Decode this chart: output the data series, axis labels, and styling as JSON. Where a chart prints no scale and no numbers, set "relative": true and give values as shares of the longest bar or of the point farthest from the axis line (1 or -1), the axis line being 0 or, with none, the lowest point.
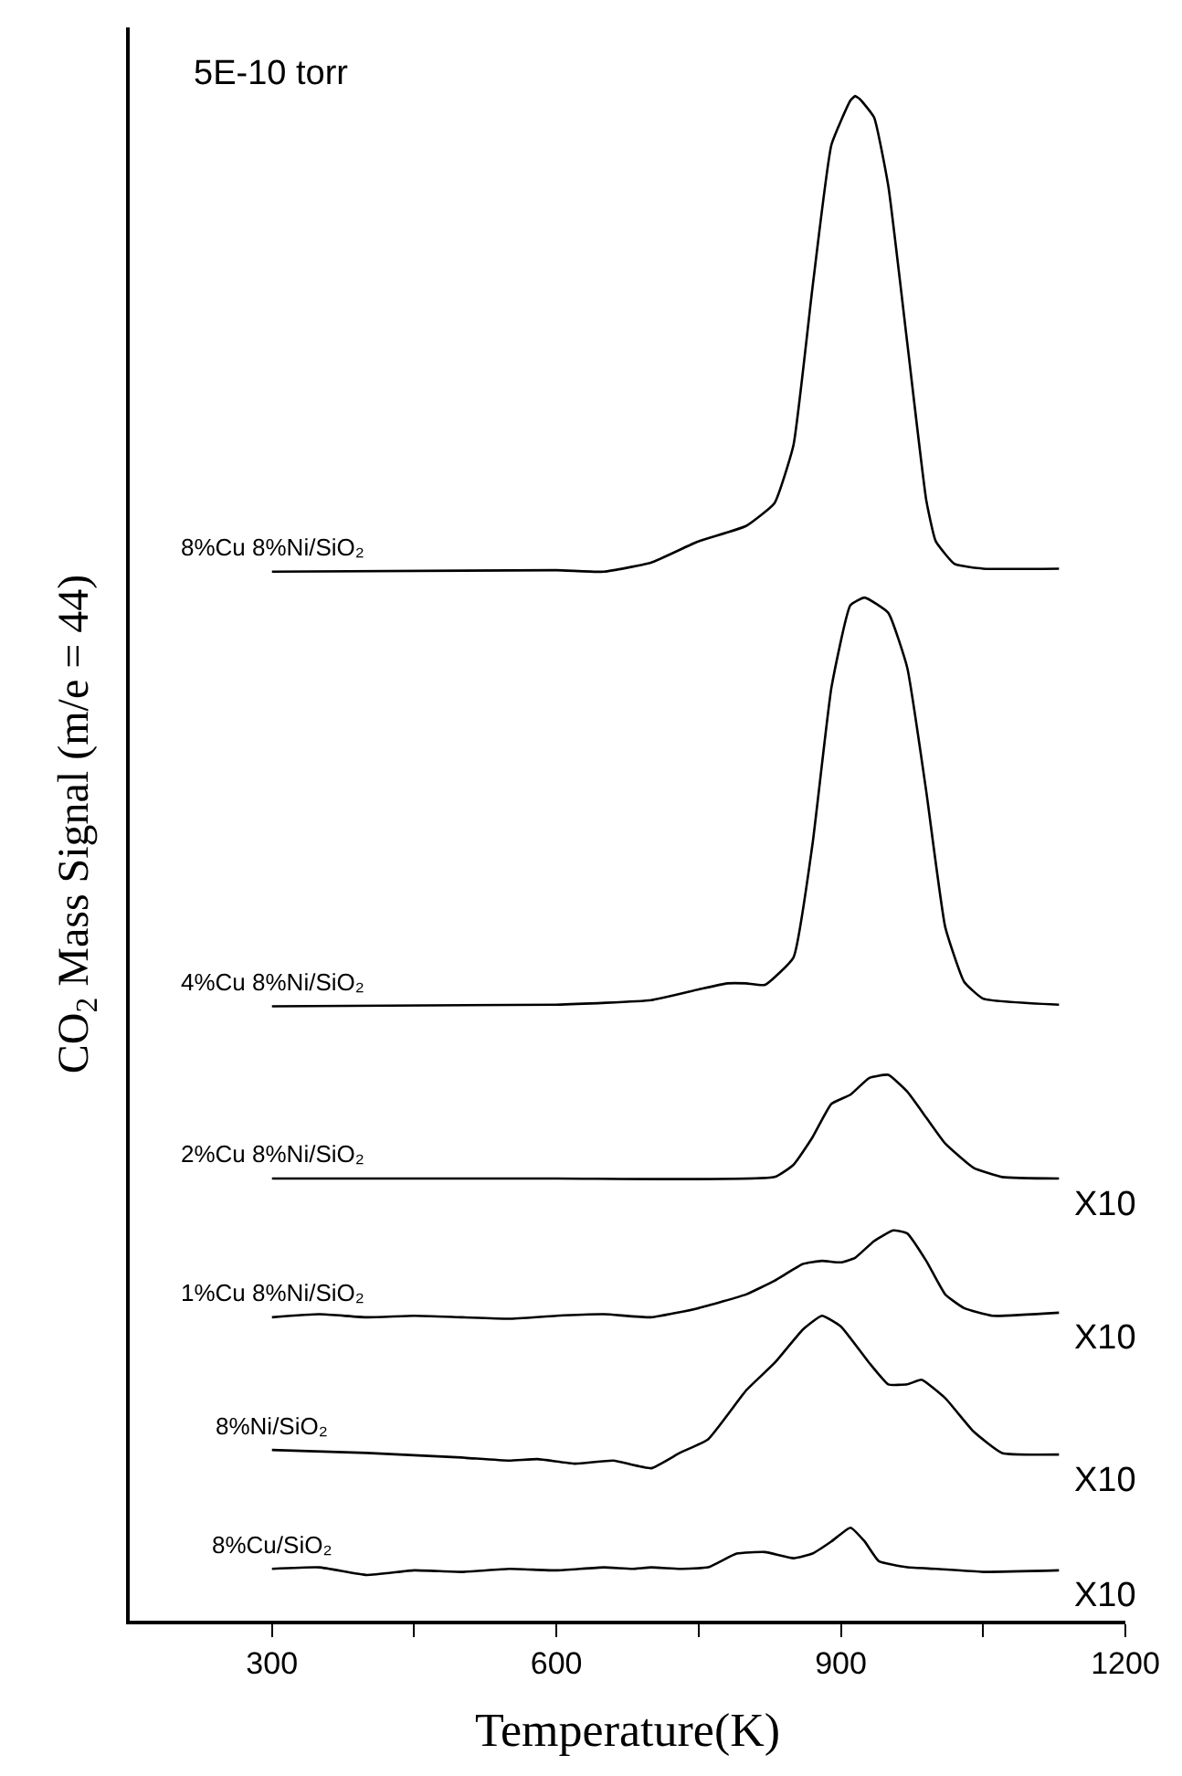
{
  "chart_data": {
    "type": "line",
    "relative": true,
    "xlabel": "Temperature(K)",
    "ylabel": "CO$_{2}$ Mass Signal (m/e = 44)",
    "xlim": [
      150,
      1200
    ],
    "xticks": [
      300,
      {
        "value": 450,
        "label": null
      },
      600,
      {
        "value": 750,
        "label": null
      },
      900,
      {
        "value": 1050,
        "label": null
      },
      1200
    ],
    "legend": false,
    "marker": "none",
    "line_style": "solid",
    "annotations": [
      "5E-10 torr",
      "X10",
      "X10",
      "X10",
      "X10"
    ],
    "series": [
      {
        "name": "8%Cu 8%Ni/SiO₂",
        "color": "#000000",
        "x": [
          300,
          600,
          650,
          700,
          750,
          800,
          830,
          850,
          870,
          890,
          910,
          915,
          920,
          935,
          950,
          970,
          990,
          1000,
          1020,
          1050,
          1130
        ],
        "values": [
          0.688,
          0.689,
          0.688,
          0.694,
          0.708,
          0.718,
          0.733,
          0.771,
          0.874,
          0.968,
          0.997,
          1.0,
          0.998,
          0.986,
          0.941,
          0.838,
          0.735,
          0.708,
          0.693,
          0.69,
          0.69
        ]
      },
      {
        "name": "4%Cu 8%Ni/SiO₂",
        "color": "#000000",
        "x": [
          300,
          600,
          700,
          750,
          780,
          800,
          820,
          850,
          870,
          890,
          910,
          925,
          950,
          970,
          990,
          1010,
          1030,
          1050,
          1130
        ],
        "values": [
          0.403,
          0.404,
          0.407,
          0.414,
          0.418,
          0.418,
          0.417,
          0.435,
          0.509,
          0.612,
          0.666,
          0.671,
          0.661,
          0.625,
          0.544,
          0.455,
          0.419,
          0.408,
          0.404
        ]
      },
      {
        "name": "2%Cu 8%Ni/SiO₂",
        "color": "#000000",
        "x": [
          300,
          600,
          830,
          850,
          870,
          890,
          910,
          930,
          950,
          970,
          990,
          1010,
          1040,
          1070,
          1130
        ],
        "values": [
          0.29,
          0.29,
          0.291,
          0.299,
          0.317,
          0.339,
          0.345,
          0.356,
          0.358,
          0.347,
          0.33,
          0.313,
          0.297,
          0.291,
          0.29
        ]
      },
      {
        "name": "1%Cu 8%Ni/SiO₂",
        "color": "#000000",
        "x": [
          300,
          350,
          400,
          450,
          500,
          550,
          600,
          650,
          700,
          750,
          800,
          830,
          860,
          880,
          900,
          915,
          935,
          955,
          970,
          990,
          1010,
          1030,
          1060,
          1130
        ],
        "values": [
          0.199,
          0.201,
          0.199,
          0.2,
          0.199,
          0.198,
          0.2,
          0.201,
          0.199,
          0.205,
          0.214,
          0.223,
          0.234,
          0.236,
          0.235,
          0.238,
          0.249,
          0.256,
          0.254,
          0.236,
          0.214,
          0.205,
          0.2,
          0.202
        ]
      },
      {
        "name": "8%Ni/SiO₂",
        "color": "#000000",
        "x": [
          300,
          400,
          500,
          550,
          580,
          620,
          660,
          700,
          730,
          760,
          800,
          830,
          860,
          880,
          900,
          930,
          950,
          970,
          985,
          1010,
          1040,
          1070,
          1130
        ],
        "values": [
          0.112,
          0.11,
          0.107,
          0.105,
          0.106,
          0.103,
          0.105,
          0.1,
          0.11,
          0.119,
          0.151,
          0.169,
          0.191,
          0.2,
          0.193,
          0.169,
          0.155,
          0.155,
          0.158,
          0.146,
          0.124,
          0.11,
          0.109
        ]
      },
      {
        "name": "8%Cu/SiO₂",
        "color": "#000000",
        "x": [
          300,
          350,
          400,
          450,
          500,
          550,
          600,
          650,
          680,
          700,
          730,
          760,
          790,
          820,
          850,
          870,
          890,
          910,
          925,
          940,
          970,
          1000,
          1050,
          1130
        ],
        "values": [
          0.034,
          0.035,
          0.03,
          0.033,
          0.032,
          0.034,
          0.033,
          0.035,
          0.034,
          0.035,
          0.034,
          0.035,
          0.044,
          0.045,
          0.041,
          0.044,
          0.052,
          0.061,
          0.052,
          0.039,
          0.035,
          0.034,
          0.032,
          0.033
        ]
      }
    ]
  }
}
